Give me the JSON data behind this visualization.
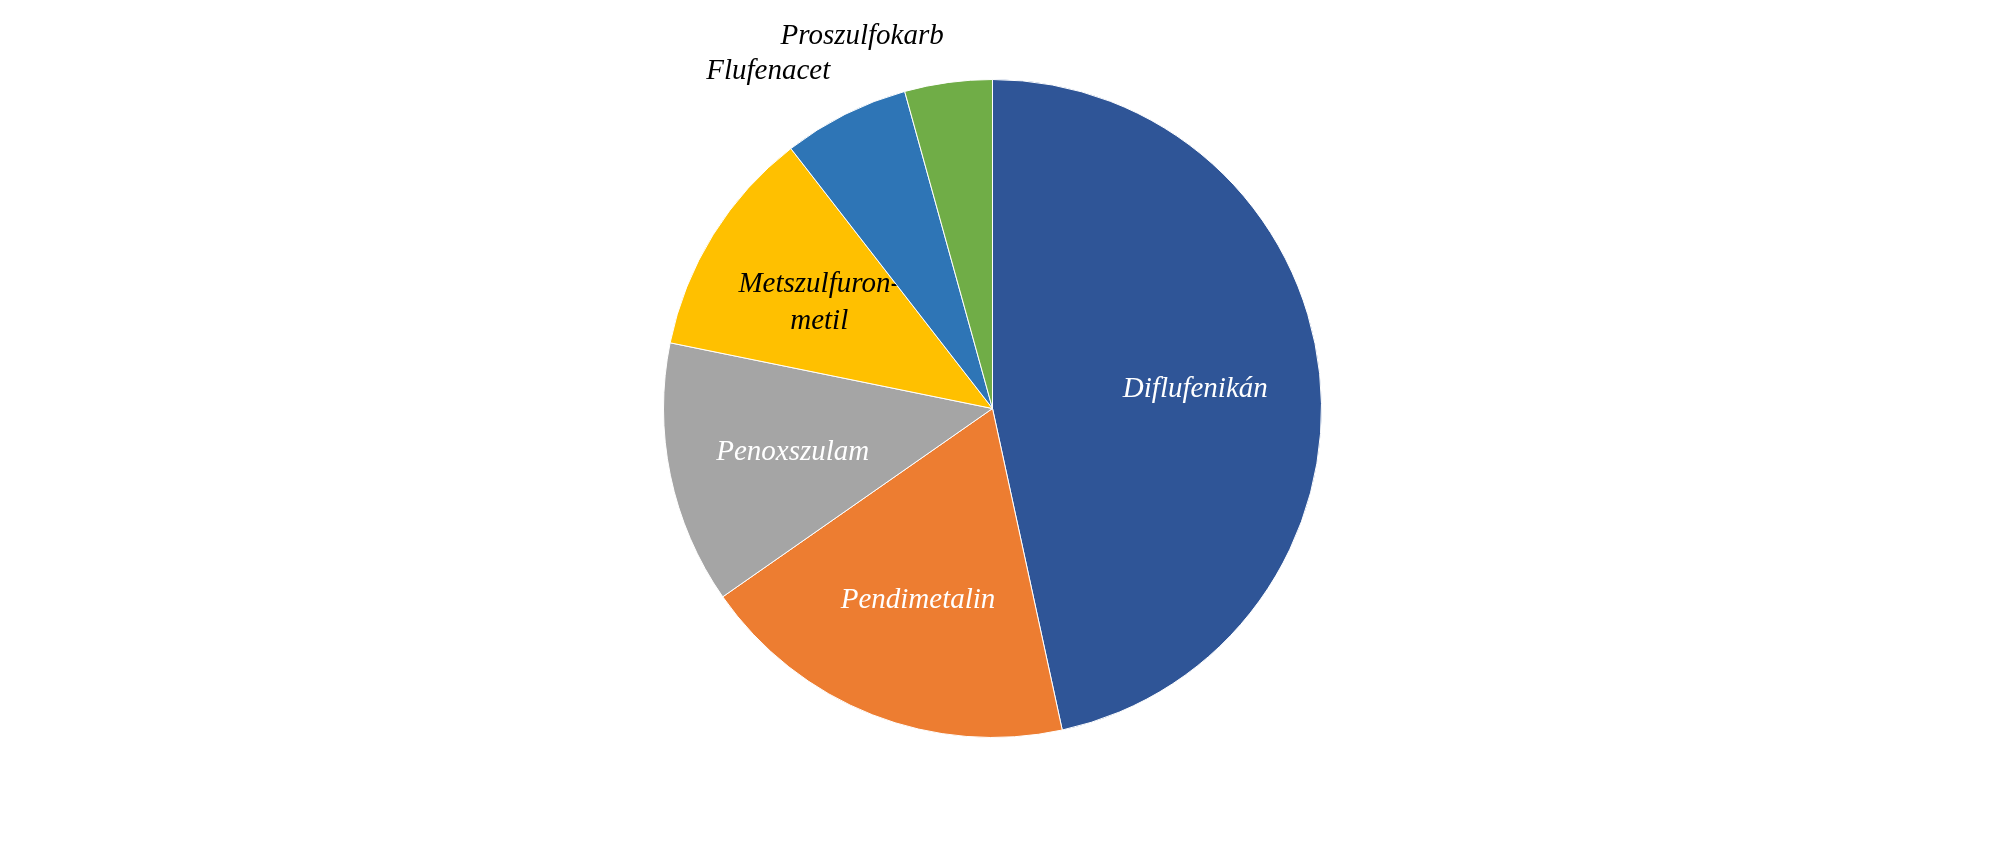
{
  "chart_data": {
    "type": "pie",
    "categories": [
      "Diflufenikán",
      "Pendimetalin",
      "Penoxszulam",
      "Metszulfuron-metil",
      "Flufenacet",
      "Proszulfokarb"
    ],
    "values": [
      46.6,
      18.7,
      12.9,
      11.3,
      6.2,
      4.3
    ],
    "colors": [
      "#2f5597",
      "#ed7d31",
      "#a5a5a5",
      "#ffc000",
      "#2e75b6",
      "#70ad47"
    ]
  }
}
